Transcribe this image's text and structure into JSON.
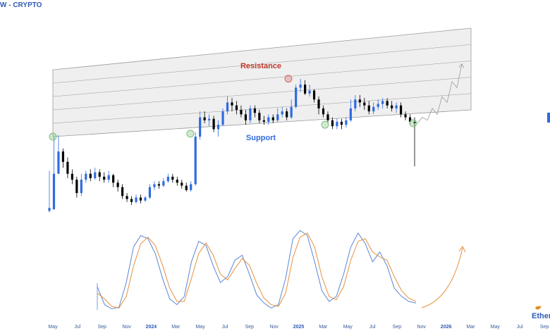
{
  "header": {
    "title": "W - CRYPTO"
  },
  "brand": {
    "name": "Ether",
    "bird_icon": "bird-icon",
    "color": "#e08a1e"
  },
  "colors": {
    "bull": "#2f6be0",
    "bear": "#000000",
    "channel_fill": "#efefef",
    "channel_line": "#9a9a9a",
    "resistance_text": "#c0392b",
    "support_text": "#2f6be0",
    "stoch_k": "#5b86d6",
    "stoch_d": "#e8903c",
    "projection_arrow": "#e8903c"
  },
  "chart_data": {
    "type": "candlestick",
    "x_axis": {
      "ticks": [
        "May",
        "Jul",
        "Sep",
        "Nov",
        "2024",
        "Mar",
        "May",
        "Jul",
        "Sep",
        "Nov",
        "2025",
        "Mar",
        "May",
        "Jul",
        "Sep",
        "Nov",
        "2026",
        "Mar",
        "May",
        "Jul",
        "Sep"
      ]
    },
    "annotations": {
      "resistance": "Resistance",
      "support": "Support"
    },
    "channel": {
      "upper_start": 100,
      "upper_end": 128,
      "lower_start": 55,
      "lower_end": 73,
      "inner_levels": 4
    },
    "candles": [
      [
        5,
        7,
        32,
        4
      ],
      [
        6,
        30,
        55,
        20
      ],
      [
        30,
        45,
        56,
        36
      ],
      [
        45,
        38,
        47,
        34
      ],
      [
        38,
        30,
        41,
        27
      ],
      [
        30,
        26,
        33,
        23
      ],
      [
        26,
        17,
        28,
        14
      ],
      [
        17,
        26,
        30,
        15
      ],
      [
        26,
        30,
        32,
        24
      ],
      [
        30,
        27,
        33,
        25
      ],
      [
        27,
        31,
        34,
        26
      ],
      [
        31,
        28,
        33,
        25
      ],
      [
        28,
        26,
        31,
        24
      ],
      [
        26,
        29,
        32,
        24
      ],
      [
        29,
        24,
        30,
        21
      ],
      [
        24,
        21,
        26,
        18
      ],
      [
        21,
        15,
        23,
        13
      ],
      [
        15,
        13,
        17,
        11
      ],
      [
        13,
        11,
        15,
        9
      ],
      [
        11,
        14,
        16,
        10
      ],
      [
        14,
        12,
        16,
        10
      ],
      [
        12,
        14,
        15,
        11
      ],
      [
        14,
        21,
        23,
        13
      ],
      [
        21,
        23,
        25,
        19
      ],
      [
        23,
        22,
        25,
        20
      ],
      [
        22,
        25,
        27,
        21
      ],
      [
        25,
        28,
        30,
        24
      ],
      [
        28,
        26,
        30,
        24
      ],
      [
        26,
        24,
        28,
        22
      ],
      [
        24,
        22,
        26,
        20
      ],
      [
        22,
        19,
        24,
        18
      ],
      [
        19,
        23,
        25,
        18
      ],
      [
        23,
        55,
        58,
        22
      ],
      [
        55,
        68,
        72,
        53
      ],
      [
        68,
        66,
        72,
        64
      ],
      [
        66,
        67,
        70,
        62
      ],
      [
        67,
        60,
        69,
        58
      ],
      [
        60,
        63,
        66,
        55
      ],
      [
        63,
        72,
        74,
        62
      ],
      [
        72,
        78,
        82,
        70
      ],
      [
        78,
        76,
        81,
        72
      ],
      [
        76,
        73,
        79,
        70
      ],
      [
        73,
        70,
        76,
        68
      ],
      [
        70,
        66,
        73,
        63
      ],
      [
        66,
        74,
        76,
        64
      ],
      [
        74,
        71,
        76,
        68
      ],
      [
        71,
        66,
        73,
        64
      ],
      [
        66,
        65,
        69,
        63
      ],
      [
        65,
        68,
        70,
        63
      ],
      [
        68,
        66,
        70,
        64
      ],
      [
        66,
        70,
        74,
        65
      ],
      [
        70,
        72,
        75,
        68
      ],
      [
        72,
        68,
        74,
        66
      ],
      [
        68,
        75,
        80,
        67
      ],
      [
        75,
        88,
        90,
        74
      ],
      [
        88,
        90,
        94,
        85
      ],
      [
        90,
        84,
        93,
        83
      ],
      [
        84,
        86,
        90,
        82
      ],
      [
        86,
        80,
        87,
        78
      ],
      [
        80,
        74,
        82,
        70
      ],
      [
        74,
        70,
        76,
        68
      ],
      [
        70,
        66,
        72,
        64
      ],
      [
        66,
        62,
        68,
        60
      ],
      [
        62,
        65,
        67,
        60
      ],
      [
        65,
        63,
        67,
        60
      ],
      [
        63,
        66,
        68,
        61
      ],
      [
        66,
        74,
        80,
        65
      ],
      [
        74,
        80,
        83,
        72
      ],
      [
        80,
        78,
        83,
        75
      ],
      [
        78,
        76,
        81,
        73
      ],
      [
        76,
        72,
        79,
        70
      ],
      [
        72,
        75,
        78,
        70
      ],
      [
        75,
        77,
        80,
        73
      ],
      [
        77,
        79,
        81,
        74
      ],
      [
        79,
        76,
        81,
        74
      ],
      [
        76,
        74,
        79,
        72
      ],
      [
        74,
        76,
        78,
        71
      ],
      [
        76,
        70,
        78,
        68
      ],
      [
        70,
        68,
        72,
        66
      ],
      [
        68,
        65,
        70,
        63
      ],
      [
        65,
        64,
        68,
        35
      ]
    ],
    "projection": [
      [
        64,
        64
      ],
      [
        67,
        68
      ],
      [
        65,
        66
      ],
      [
        70,
        74
      ],
      [
        68,
        70
      ],
      [
        76,
        82
      ],
      [
        73,
        78
      ],
      [
        83,
        92
      ],
      [
        80,
        88
      ],
      [
        92,
        104
      ]
    ],
    "stochastic": {
      "k": [
        30,
        8,
        3,
        5,
        35,
        78,
        92,
        88,
        70,
        40,
        15,
        8,
        18,
        60,
        85,
        80,
        55,
        35,
        42,
        62,
        68,
        45,
        20,
        10,
        4,
        8,
        40,
        88,
        98,
        92,
        60,
        25,
        12,
        18,
        45,
        78,
        95,
        82,
        60,
        72,
        55,
        28,
        18,
        12,
        10
      ],
      "d": [
        22,
        15,
        6,
        4,
        18,
        55,
        82,
        90,
        80,
        56,
        28,
        12,
        12,
        40,
        70,
        83,
        68,
        45,
        38,
        52,
        64,
        56,
        34,
        16,
        8,
        6,
        22,
        65,
        90,
        95,
        78,
        42,
        18,
        14,
        30,
        62,
        85,
        88,
        72,
        66,
        62,
        42,
        25,
        16,
        12
      ],
      "projection_curve": "up"
    }
  }
}
